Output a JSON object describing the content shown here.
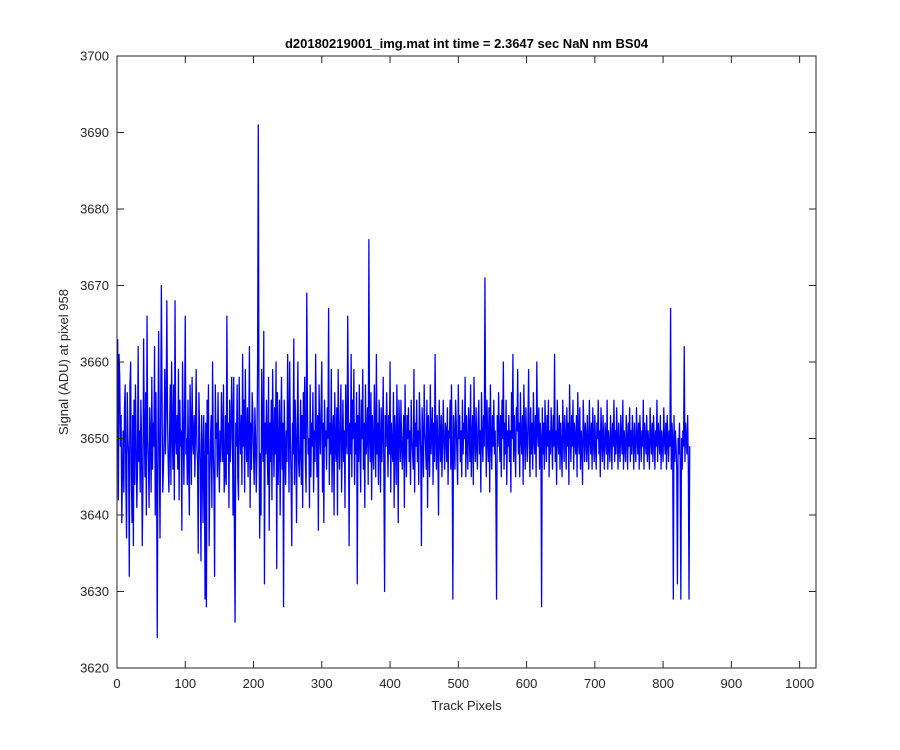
{
  "chart_data": {
    "type": "line",
    "title": "d20180219001_img.mat int time = 2.3647 sec  NaN nm BS04",
    "xlabel": "Track Pixels",
    "ylabel": "Signal (ADU) at pixel 958",
    "xlim": [
      0,
      1024
    ],
    "ylim": [
      3620,
      3700
    ],
    "xticks": [
      0,
      100,
      200,
      300,
      400,
      500,
      600,
      700,
      800,
      900,
      1000
    ],
    "yticks": [
      3620,
      3630,
      3640,
      3650,
      3660,
      3670,
      3680,
      3690,
      3700
    ],
    "grid": false,
    "line_color": "#0000ff",
    "series": [
      {
        "x_start": 1,
        "x_step": 1,
        "values": [
          3663,
          3642,
          3661,
          3658,
          3649,
          3653,
          3639,
          3646,
          3651,
          3643,
          3654,
          3657,
          3644,
          3637,
          3656,
          3650,
          3648,
          3632,
          3657,
          3660,
          3645,
          3639,
          3653,
          3636,
          3655,
          3644,
          3657,
          3650,
          3641,
          3646,
          3662,
          3647,
          3651,
          3643,
          3655,
          3649,
          3636,
          3644,
          3663,
          3651,
          3645,
          3656,
          3640,
          3666,
          3650,
          3647,
          3641,
          3654,
          3650,
          3643,
          3658,
          3646,
          3652,
          3649,
          3662,
          3640,
          3656,
          3645,
          3624,
          3651,
          3664,
          3648,
          3637,
          3653,
          3670,
          3655,
          3643,
          3646,
          3650,
          3659,
          3648,
          3654,
          3668,
          3653,
          3647,
          3643,
          3650,
          3657,
          3644,
          3660,
          3651,
          3646,
          3657,
          3642,
          3668,
          3650,
          3648,
          3653,
          3646,
          3659,
          3642,
          3655,
          3649,
          3651,
          3638,
          3660,
          3652,
          3644,
          3653,
          3666,
          3648,
          3650,
          3644,
          3655,
          3646,
          3640,
          3657,
          3652,
          3644,
          3658,
          3650,
          3648,
          3653,
          3645,
          3651,
          3659,
          3649,
          3647,
          3635,
          3656,
          3651,
          3646,
          3634,
          3653,
          3649,
          3639,
          3653,
          3647,
          3629,
          3652,
          3628,
          3655,
          3648,
          3657,
          3636,
          3645,
          3650,
          3653,
          3641,
          3660,
          3649,
          3644,
          3632,
          3657,
          3650,
          3652,
          3645,
          3656,
          3648,
          3643,
          3651,
          3647,
          3656,
          3650,
          3647,
          3657,
          3643,
          3645,
          3653,
          3644,
          3666,
          3648,
          3652,
          3641,
          3655,
          3647,
          3650,
          3658,
          3653,
          3640,
          3658,
          3637,
          3626,
          3652,
          3649,
          3657,
          3645,
          3642,
          3658,
          3651,
          3648,
          3653,
          3644,
          3661,
          3649,
          3655,
          3643,
          3659,
          3650,
          3647,
          3654,
          3645,
          3651,
          3662,
          3641,
          3652,
          3646,
          3656,
          3653,
          3648,
          3644,
          3654,
          3650,
          3643,
          3648,
          3660,
          3691,
          3653,
          3637,
          3648,
          3640,
          3659,
          3650,
          3647,
          3664,
          3631,
          3652,
          3648,
          3655,
          3649,
          3644,
          3658,
          3638,
          3652,
          3647,
          3655,
          3642,
          3659,
          3650,
          3645,
          3654,
          3648,
          3660,
          3633,
          3656,
          3644,
          3649,
          3655,
          3640,
          3651,
          3658,
          3646,
          3652,
          3628,
          3655,
          3649,
          3644,
          3651,
          3647,
          3661,
          3652,
          3643,
          3660,
          3650,
          3645,
          3636,
          3652,
          3648,
          3663,
          3644,
          3655,
          3650,
          3639,
          3651,
          3660,
          3647,
          3645,
          3649,
          3655,
          3644,
          3653,
          3641,
          3656,
          3650,
          3658,
          3647,
          3643,
          3669,
          3654,
          3648,
          3650,
          3641,
          3657,
          3645,
          3652,
          3649,
          3656,
          3643,
          3651,
          3647,
          3661,
          3651,
          3645,
          3653,
          3638,
          3657,
          3651,
          3648,
          3654,
          3660,
          3643,
          3652,
          3639,
          3655,
          3649,
          3651,
          3646,
          3654,
          3650,
          3667,
          3644,
          3652,
          3648,
          3659,
          3643,
          3651,
          3653,
          3640,
          3656,
          3649,
          3647,
          3654,
          3640,
          3659,
          3650,
          3646,
          3652,
          3657,
          3643,
          3649,
          3655,
          3647,
          3651,
          3641,
          3657,
          3650,
          3648,
          3666,
          3654,
          3636,
          3652,
          3648,
          3661,
          3645,
          3655,
          3650,
          3659,
          3644,
          3652,
          3648,
          3656,
          3631,
          3653,
          3647,
          3657,
          3649,
          3643,
          3655,
          3650,
          3659,
          3646,
          3652,
          3641,
          3657,
          3648,
          3650,
          3654,
          3644,
          3676,
          3650,
          3647,
          3656,
          3642,
          3653,
          3649,
          3646,
          3657,
          3651,
          3645,
          3661,
          3648,
          3652,
          3644,
          3655,
          3650,
          3643,
          3654,
          3647,
          3651,
          3658,
          3645,
          3630,
          3653,
          3649,
          3656,
          3651,
          3645,
          3653,
          3648,
          3660,
          3643,
          3652,
          3649,
          3647,
          3656,
          3641,
          3653,
          3650,
          3644,
          3657,
          3650,
          3639,
          3655,
          3651,
          3647,
          3655,
          3649,
          3646,
          3650,
          3653,
          3641,
          3657,
          3649,
          3645,
          3653,
          3650,
          3654,
          3647,
          3651,
          3644,
          3655,
          3650,
          3648,
          3646,
          3659,
          3643,
          3652,
          3649,
          3655,
          3647,
          3651,
          3644,
          3656,
          3652,
          3648,
          3636,
          3654,
          3650,
          3645,
          3657,
          3651,
          3649,
          3646,
          3655,
          3641,
          3653,
          3649,
          3645,
          3657,
          3648,
          3651,
          3654,
          3644,
          3652,
          3647,
          3661,
          3650,
          3646,
          3653,
          3649,
          3640,
          3655,
          3651,
          3647,
          3653,
          3645,
          3650,
          3655,
          3649,
          3646,
          3652,
          3651,
          3647,
          3654,
          3644,
          3651,
          3650,
          3655,
          3646,
          3657,
          3648,
          3629,
          3653,
          3650,
          3646,
          3655,
          3652,
          3648,
          3644,
          3657,
          3650,
          3653,
          3647,
          3651,
          3645,
          3655,
          3648,
          3652,
          3650,
          3658,
          3645,
          3653,
          3649,
          3646,
          3654,
          3651,
          3647,
          3657,
          3645,
          3650,
          3653,
          3644,
          3658,
          3650,
          3647,
          3654,
          3649,
          3646,
          3652,
          3655,
          3648,
          3651,
          3643,
          3656,
          3650,
          3647,
          3653,
          3649,
          3671,
          3652,
          3645,
          3655,
          3650,
          3647,
          3654,
          3643,
          3657,
          3650,
          3646,
          3653,
          3649,
          3655,
          3648,
          3651,
          3644,
          3629,
          3653,
          3649,
          3656,
          3651,
          3647,
          3653,
          3645,
          3655,
          3650,
          3660,
          3646,
          3652,
          3648,
          3655,
          3644,
          3651,
          3649,
          3653,
          3647,
          3651,
          3643,
          3656,
          3650,
          3661,
          3647,
          3653,
          3649,
          3645,
          3654,
          3651,
          3659,
          3648,
          3652,
          3645,
          3656,
          3650,
          3648,
          3653,
          3644,
          3657,
          3651,
          3646,
          3654,
          3650,
          3647,
          3652,
          3659,
          3649,
          3645,
          3654,
          3648,
          3652,
          3646,
          3656,
          3650,
          3648,
          3653,
          3645,
          3660,
          3651,
          3649,
          3654,
          3646,
          3652,
          3650,
          3628,
          3654,
          3648,
          3652,
          3646,
          3655,
          3650,
          3647,
          3653,
          3649,
          3655,
          3645,
          3651,
          3648,
          3654,
          3650,
          3646,
          3653,
          3649,
          3661,
          3647,
          3651,
          3644,
          3655,
          3650,
          3648,
          3653,
          3646,
          3652,
          3649,
          3645,
          3655,
          3651,
          3647,
          3653,
          3650,
          3646,
          3654,
          3649,
          3652,
          3644,
          3657,
          3650,
          3647,
          3653,
          3649,
          3655,
          3646,
          3652,
          3650,
          3648,
          3653,
          3645,
          3656,
          3650,
          3648,
          3654,
          3646,
          3651,
          3649,
          3644,
          3655,
          3651,
          3647,
          3652,
          3650,
          3647,
          3653,
          3649,
          3646,
          3655,
          3650,
          3648,
          3652,
          3646,
          3654,
          3650,
          3647,
          3653,
          3649,
          3646,
          3652,
          3650,
          3655,
          3648,
          3651,
          3645,
          3654,
          3650,
          3647,
          3653,
          3649,
          3646,
          3652,
          3650,
          3648,
          3655,
          3646,
          3651,
          3649,
          3647,
          3653,
          3650,
          3646,
          3652,
          3649,
          3655,
          3647,
          3651,
          3648,
          3654,
          3650,
          3646,
          3652,
          3649,
          3647,
          3653,
          3650,
          3648,
          3655,
          3646,
          3651,
          3649,
          3647,
          3653,
          3650,
          3646,
          3652,
          3649,
          3654,
          3647,
          3651,
          3648,
          3653,
          3650,
          3646,
          3652,
          3649,
          3647,
          3654,
          3650,
          3648,
          3652,
          3646,
          3653,
          3650,
          3647,
          3651,
          3649,
          3655,
          3646,
          3652,
          3650,
          3648,
          3653,
          3647,
          3651,
          3649,
          3646,
          3654,
          3650,
          3648,
          3652,
          3647,
          3653,
          3650,
          3646,
          3651,
          3649,
          3655,
          3647,
          3652,
          3650,
          3648,
          3653,
          3646,
          3651,
          3649,
          3647,
          3654,
          3650,
          3648,
          3652,
          3646,
          3653,
          3650,
          3647,
          3651,
          3649,
          3667,
          3646,
          3652,
          3650,
          3629,
          3653,
          3647,
          3651,
          3649,
          3646,
          3631,
          3650,
          3648,
          3652,
          3647,
          3629,
          3650,
          3646,
          3651,
          3649,
          3662,
          3647,
          3652,
          3650,
          3648,
          3653,
          3646,
          3629,
          3649
        ]
      }
    ]
  }
}
